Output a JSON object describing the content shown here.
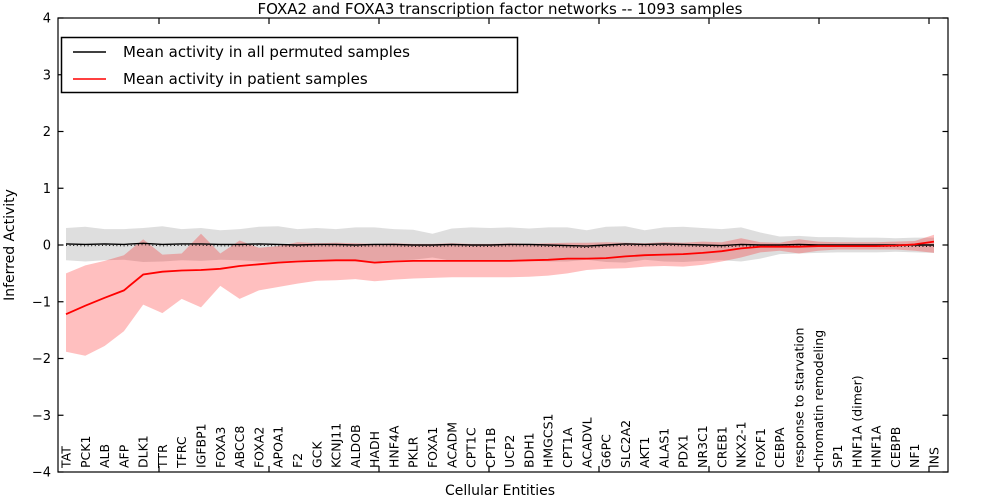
{
  "chart_data": {
    "type": "line",
    "title": "FOXA2 and FOXA3 transcription factor networks -- 1093 samples",
    "xlabel": "Cellular Entities",
    "ylabel": "Inferred Activity",
    "ylim": [
      -4,
      4
    ],
    "grid": false,
    "legend_position": "upper left",
    "yticks": {
      "values": [
        4,
        3,
        2,
        1,
        0,
        -1,
        -2,
        -3,
        -4
      ],
      "labels": [
        "4",
        "3",
        "2",
        "1",
        "0",
        "−1",
        "−2",
        "−3",
        "−4"
      ]
    },
    "categories": [
      "TAT",
      "PCK1",
      "ALB",
      "AFP",
      "DLK1",
      "TTR",
      "TFRC",
      "IGFBP1",
      "FOXA3",
      "ABCC8",
      "FOXA2",
      "APOA1",
      "F2",
      "GCK",
      "KCNJ11",
      "ALDOB",
      "HADH",
      "HNF4A",
      "PKLR",
      "FOXA1",
      "ACADM",
      "CPT1C",
      "CPT1B",
      "UCP2",
      "BDH1",
      "HMGCS1",
      "CPT1A",
      "ACADVL",
      "G6PC",
      "SLC2A2",
      "AKT1",
      "ALAS1",
      "PDX1",
      "NR3C1",
      "CREB1",
      "NKX2-1",
      "FOXF1",
      "CEBPA",
      "response to starvation",
      "chromatin remodeling",
      "SP1",
      "HNF1A (dimer)",
      "HNF1A",
      "CEBPB",
      "NF1",
      "INS"
    ],
    "series": [
      {
        "name": "Mean activity in all permuted samples",
        "color": "#000000",
        "band_fill_opacity": 0.13,
        "values": [
          0.02,
          0.01,
          0.02,
          0.01,
          0.03,
          0.01,
          0.02,
          0.02,
          0.01,
          0.01,
          0.02,
          0.01,
          0.0,
          0.01,
          0.01,
          0.0,
          0.01,
          0.01,
          0.0,
          0.0,
          0.01,
          0.0,
          0.0,
          0.01,
          0.01,
          0.0,
          -0.01,
          -0.02,
          0.0,
          0.02,
          0.01,
          0.02,
          0.01,
          0.0,
          -0.01,
          0.01,
          0.0,
          0.0,
          0.01,
          0.0,
          0.0,
          0.0,
          0.0,
          0.0,
          0.0,
          0.0
        ],
        "band_upper": [
          0.3,
          0.32,
          0.28,
          0.28,
          0.3,
          0.33,
          0.28,
          0.3,
          0.26,
          0.28,
          0.32,
          0.33,
          0.28,
          0.3,
          0.28,
          0.31,
          0.31,
          0.28,
          0.27,
          0.2,
          0.29,
          0.31,
          0.3,
          0.31,
          0.29,
          0.31,
          0.31,
          0.26,
          0.32,
          0.33,
          0.26,
          0.31,
          0.32,
          0.3,
          0.28,
          0.31,
          0.22,
          0.15,
          0.16,
          0.14,
          0.14,
          0.13,
          0.13,
          0.12,
          0.13,
          0.13
        ],
        "band_lower": [
          -0.27,
          -0.29,
          -0.27,
          -0.26,
          -0.3,
          -0.29,
          -0.27,
          -0.28,
          -0.26,
          -0.27,
          -0.29,
          -0.3,
          -0.27,
          -0.28,
          -0.27,
          -0.29,
          -0.3,
          -0.27,
          -0.26,
          -0.22,
          -0.28,
          -0.29,
          -0.28,
          -0.29,
          -0.28,
          -0.29,
          -0.29,
          -0.26,
          -0.3,
          -0.31,
          -0.26,
          -0.29,
          -0.3,
          -0.28,
          -0.27,
          -0.29,
          -0.24,
          -0.16,
          -0.15,
          -0.14,
          -0.13,
          -0.13,
          -0.13,
          -0.12,
          -0.13,
          -0.14
        ]
      },
      {
        "name": "Mean activity in patient samples",
        "color": "#ff0000",
        "band_fill_opacity": 0.25,
        "values": [
          -1.22,
          -1.07,
          -0.93,
          -0.8,
          -0.52,
          -0.47,
          -0.45,
          -0.44,
          -0.42,
          -0.37,
          -0.34,
          -0.31,
          -0.29,
          -0.28,
          -0.27,
          -0.27,
          -0.31,
          -0.29,
          -0.28,
          -0.28,
          -0.28,
          -0.28,
          -0.28,
          -0.28,
          -0.27,
          -0.26,
          -0.24,
          -0.24,
          -0.23,
          -0.2,
          -0.18,
          -0.17,
          -0.16,
          -0.14,
          -0.11,
          -0.06,
          -0.03,
          -0.03,
          -0.03,
          -0.02,
          -0.02,
          -0.02,
          -0.02,
          -0.01,
          0.01,
          0.06
        ],
        "band_upper": [
          -0.5,
          -0.36,
          -0.28,
          -0.18,
          0.1,
          -0.17,
          -0.15,
          0.2,
          -0.15,
          0.08,
          -0.05,
          -0.02,
          0.05,
          0.03,
          0.04,
          0.03,
          0.02,
          0.03,
          0.02,
          0.02,
          0.03,
          0.02,
          0.02,
          0.03,
          0.02,
          0.03,
          0.04,
          0.04,
          0.05,
          0.04,
          0.03,
          0.05,
          0.04,
          0.06,
          0.05,
          0.12,
          0.05,
          0.04,
          0.1,
          0.06,
          0.05,
          0.05,
          0.05,
          0.06,
          0.07,
          0.18
        ],
        "band_lower": [
          -1.88,
          -1.95,
          -1.78,
          -1.52,
          -1.05,
          -1.2,
          -0.95,
          -1.1,
          -0.72,
          -0.95,
          -0.8,
          -0.74,
          -0.68,
          -0.63,
          -0.62,
          -0.6,
          -0.64,
          -0.61,
          -0.59,
          -0.58,
          -0.57,
          -0.57,
          -0.57,
          -0.57,
          -0.56,
          -0.54,
          -0.5,
          -0.44,
          -0.42,
          -0.41,
          -0.38,
          -0.37,
          -0.38,
          -0.35,
          -0.29,
          -0.22,
          -0.13,
          -0.1,
          -0.15,
          -0.1,
          -0.08,
          -0.08,
          -0.08,
          -0.08,
          -0.1,
          -0.14
        ]
      }
    ]
  }
}
